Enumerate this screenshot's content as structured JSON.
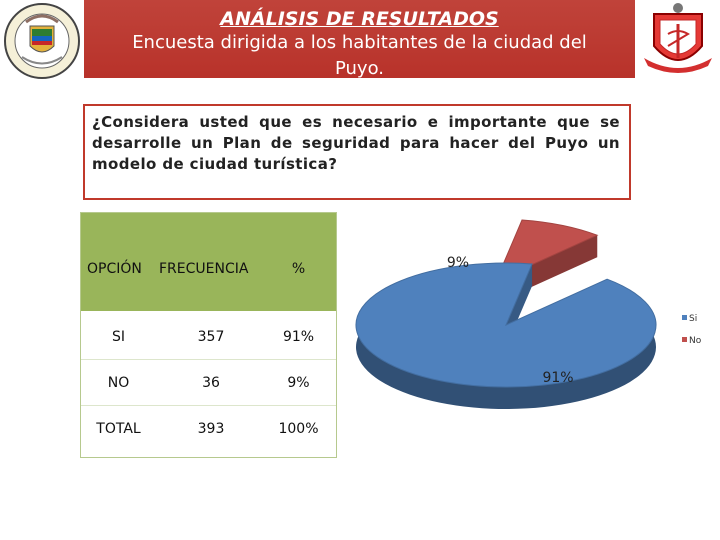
{
  "header": {
    "title": "ANÁLISIS DE RESULTADOS",
    "subtitle": "Encuesta dirigida a los habitantes de la ciudad del Puyo."
  },
  "question": "¿Considera usted que es necesario e importante que se desarrolle un Plan de seguridad para hacer del Puyo un modelo de ciudad turística?",
  "table": {
    "headers": [
      "OPCIÓN",
      "FRECUENCIA",
      "%"
    ],
    "rows": [
      {
        "option": "SI",
        "frequency": "357",
        "percent": "91%"
      },
      {
        "option": "NO",
        "frequency": "36",
        "percent": "9%"
      },
      {
        "option": "TOTAL",
        "frequency": "393",
        "percent": "100%"
      }
    ]
  },
  "chart_data": {
    "type": "pie",
    "categories": [
      "Si",
      "No"
    ],
    "values": [
      91,
      9
    ],
    "labels": [
      "91%",
      "9%"
    ],
    "colors": [
      "#4f81bd",
      "#c0504d"
    ],
    "legend": "right",
    "legend_entries": [
      "Si",
      "No"
    ]
  }
}
